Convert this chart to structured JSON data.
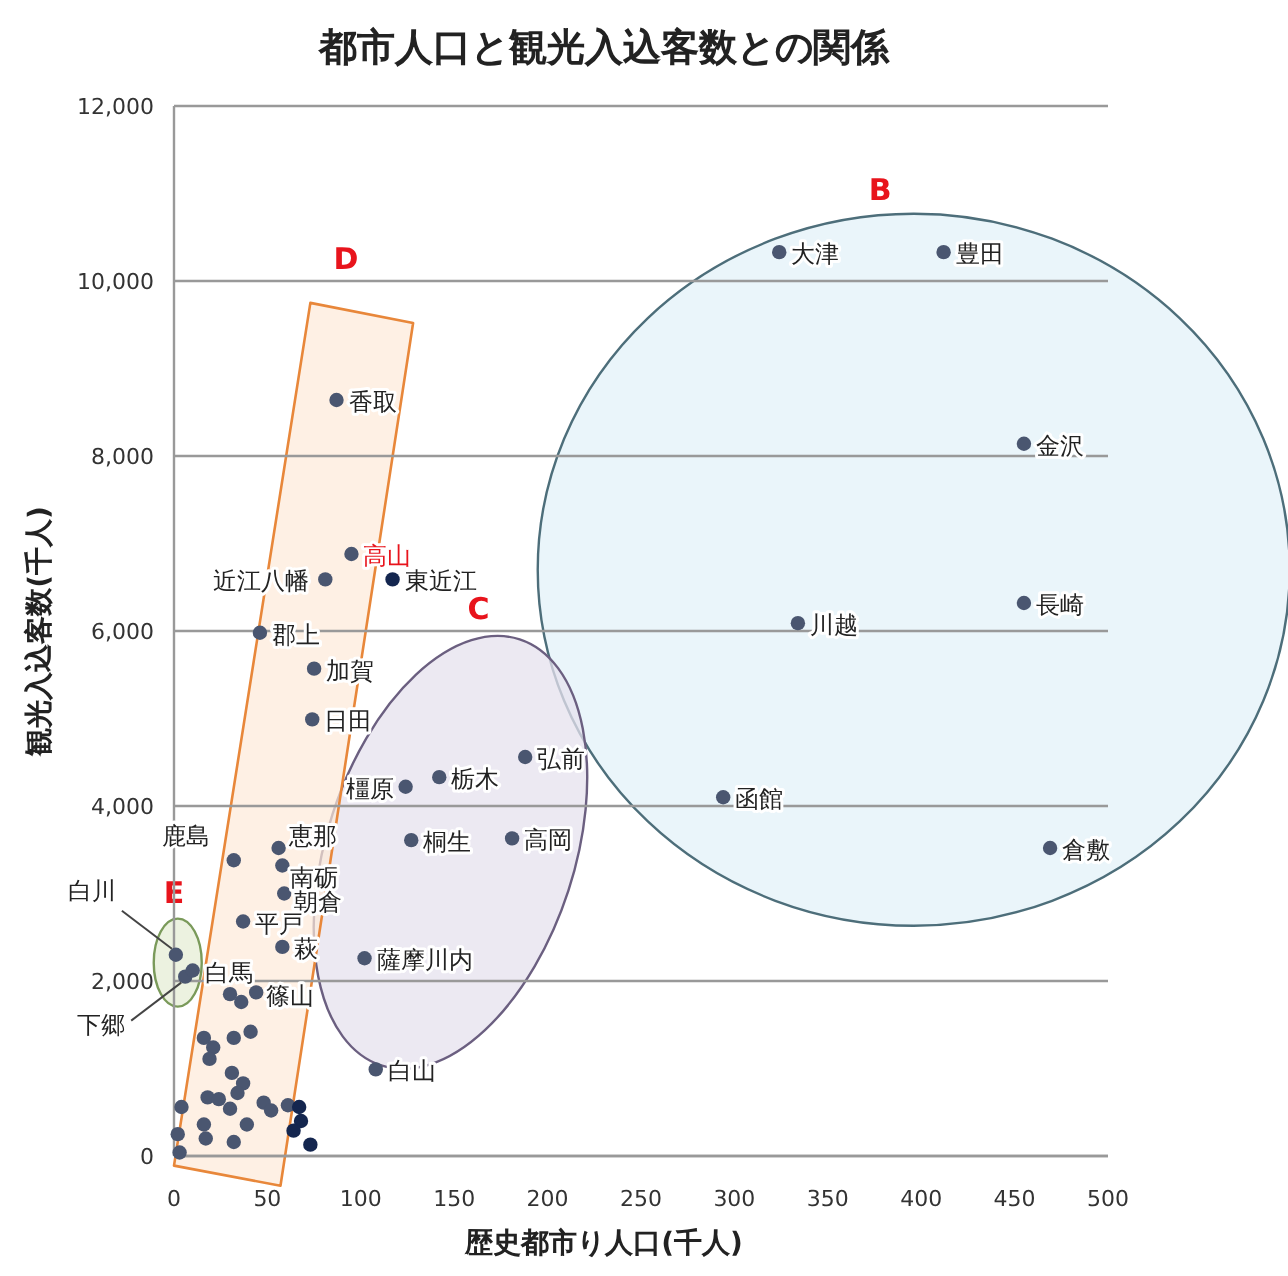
{
  "chart_data": {
    "type": "scatter",
    "title": "都市人口と観光入込客数との関係",
    "xlabel": "歴史都市り人口(千人)",
    "ylabel": "観光入込客数(千人)",
    "xlim": [
      0,
      500
    ],
    "xticks": [
      0,
      50,
      100,
      150,
      200,
      250,
      300,
      350,
      400,
      450,
      500
    ],
    "ylim": [
      0,
      12000
    ],
    "yticks": [
      {
        "value": 0,
        "label": "0"
      },
      {
        "value": 2000,
        "label": "2,000"
      },
      {
        "value": 4000,
        "label": "4,000"
      },
      {
        "value": 6000,
        "label": "6,000"
      },
      {
        "value": 8000,
        "label": "8,000"
      },
      {
        "value": 10000,
        "label": "10,000"
      },
      {
        "value": 12000,
        "label": "12,000"
      }
    ],
    "grid": "y",
    "marker": "circle",
    "series": [
      {
        "color": "#4a5670",
        "x": [
          324,
          412,
          455,
          455,
          334,
          294,
          469,
          188,
          142,
          124,
          127,
          181,
          102,
          108,
          87,
          95,
          81,
          46,
          75,
          74,
          32,
          56,
          58,
          59,
          37,
          58,
          1,
          6,
          10,
          44,
          30,
          36,
          41,
          32,
          16,
          21,
          19,
          31,
          37,
          34,
          18,
          24,
          30,
          48,
          52,
          61,
          4,
          16,
          39,
          2,
          17,
          32,
          3
        ],
        "values": [
          10330,
          10330,
          8140,
          6320,
          6090,
          4100,
          3520,
          4560,
          4330,
          4220,
          3610,
          3630,
          2260,
          990,
          8640,
          6880,
          6590,
          5980,
          5570,
          4990,
          3380,
          3520,
          3320,
          3000,
          2680,
          2390,
          2300,
          2050,
          2120,
          1870,
          1850,
          1760,
          1420,
          1350,
          1350,
          1240,
          1110,
          950,
          830,
          720,
          670,
          650,
          540,
          610,
          520,
          580,
          560,
          360,
          360,
          250,
          200,
          160,
          40
        ]
      },
      {
        "color": "#14264f",
        "x": [
          117,
          67,
          68,
          64,
          73
        ],
        "values": [
          6590,
          560,
          400,
          290,
          130
        ]
      }
    ],
    "annotations": [
      {
        "text": "大津",
        "x": 324,
        "y": 10330
      },
      {
        "text": "豊田",
        "x": 412,
        "y": 10330
      },
      {
        "text": "金沢",
        "x": 455,
        "y": 8140
      },
      {
        "text": "長崎",
        "x": 455,
        "y": 6320
      },
      {
        "text": "川越",
        "x": 334,
        "y": 6090
      },
      {
        "text": "函館",
        "x": 294,
        "y": 4100
      },
      {
        "text": "倉敷",
        "x": 469,
        "y": 3520
      },
      {
        "text": "弘前",
        "x": 188,
        "y": 4560
      },
      {
        "text": "栃木",
        "x": 142,
        "y": 4330
      },
      {
        "text": "橿原",
        "x": 124,
        "y": 4220
      },
      {
        "text": "桐生",
        "x": 127,
        "y": 3610
      },
      {
        "text": "高岡",
        "x": 181,
        "y": 3630
      },
      {
        "text": "薩摩川内",
        "x": 102,
        "y": 2260
      },
      {
        "text": "白山",
        "x": 108,
        "y": 990
      },
      {
        "text": "香取",
        "x": 87,
        "y": 8640
      },
      {
        "text": "高山",
        "x": 95,
        "y": 6880
      },
      {
        "text": "近江八幡",
        "x": 81,
        "y": 6590
      },
      {
        "text": "東近江",
        "x": 117,
        "y": 6590
      },
      {
        "text": "郡上",
        "x": 46,
        "y": 5980
      },
      {
        "text": "加賀",
        "x": 75,
        "y": 5570
      },
      {
        "text": "日田",
        "x": 74,
        "y": 4990
      },
      {
        "text": "鹿島",
        "x": 32,
        "y": 3380
      },
      {
        "text": "恵那",
        "x": 56,
        "y": 3520
      },
      {
        "text": "南砺",
        "x": 58,
        "y": 3320
      },
      {
        "text": "朝倉",
        "x": 59,
        "y": 3000
      },
      {
        "text": "平戸",
        "x": 37,
        "y": 2680
      },
      {
        "text": "萩",
        "x": 58,
        "y": 2390
      },
      {
        "text": "白川",
        "x": 1,
        "y": 2300
      },
      {
        "text": "下郷",
        "x": 6,
        "y": 2050
      },
      {
        "text": "白馬",
        "x": 10,
        "y": 2120
      },
      {
        "text": "篠山",
        "x": 44,
        "y": 1870
      },
      "B",
      "C",
      "D",
      "E"
    ]
  }
}
